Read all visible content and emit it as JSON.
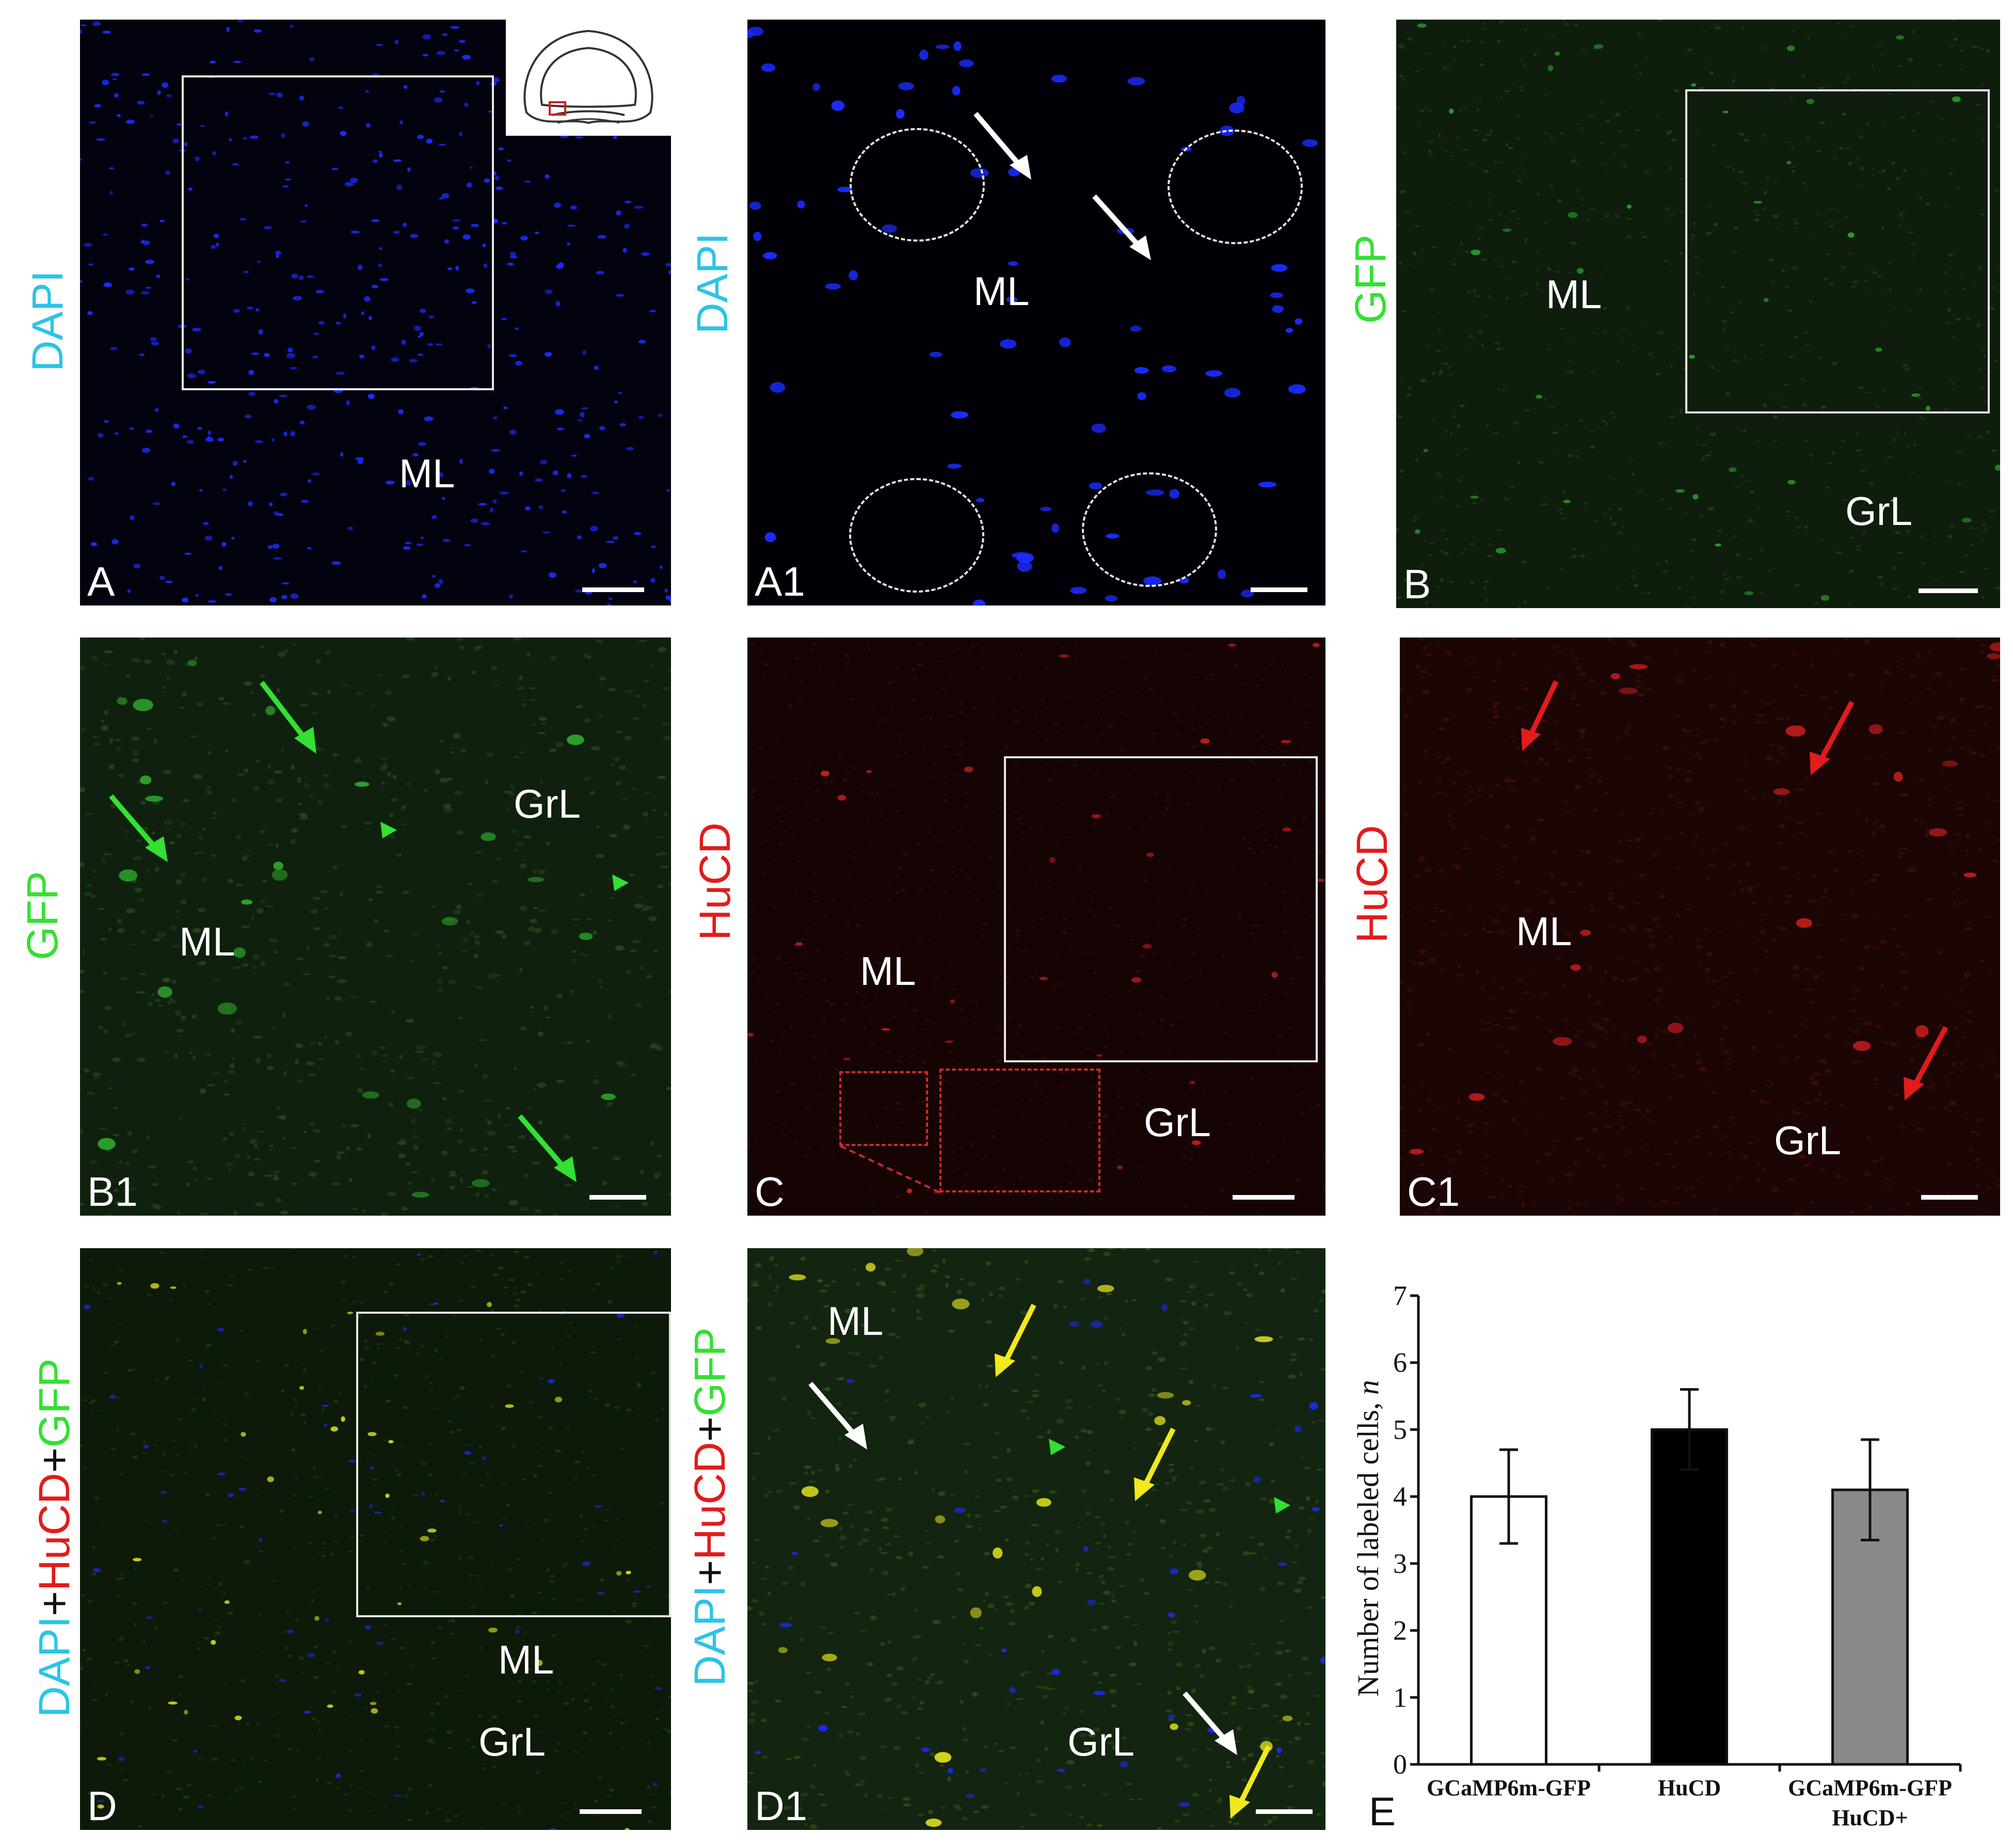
{
  "panels": {
    "A": {
      "letter": "A",
      "stain": "DAPI",
      "regions": [
        "ML"
      ]
    },
    "A1": {
      "letter": "A1",
      "stain": "DAPI",
      "regions": [
        "ML"
      ]
    },
    "B": {
      "letter": "B",
      "stain": "GFP",
      "regions": [
        "ML",
        "GrL"
      ]
    },
    "B1": {
      "letter": "B1",
      "stain": "GFP",
      "regions": [
        "ML",
        "GrL"
      ]
    },
    "C": {
      "letter": "C",
      "stain": "HuCD",
      "regions": [
        "ML",
        "GrL"
      ]
    },
    "C1": {
      "letter": "C1",
      "stain": "HuCD",
      "regions": [
        "ML",
        "GrL"
      ]
    },
    "D": {
      "letter": "D",
      "stain_parts": [
        "DAPI",
        "+",
        "HuCD",
        "+",
        "GFP"
      ],
      "regions": [
        "ML",
        "GrL"
      ]
    },
    "D1": {
      "letter": "D1",
      "stain_parts": [
        "DAPI",
        "+",
        "HuCD",
        "+",
        "GFP"
      ],
      "regions": [
        "ML",
        "GrL"
      ]
    },
    "E": {
      "letter": "E"
    }
  },
  "colors": {
    "dapi_label": "#2bc4e6",
    "gfp_label": "#33e033",
    "hucd_label": "#e21b1b",
    "nuclei": "#1a2cff",
    "gfp_signal": "#2fae2f",
    "hucd_signal": "#d11f1f",
    "merge_signal": "#e8e81e"
  },
  "chart_data": {
    "type": "bar",
    "categories": [
      "GCaMP6m-GFP",
      "HuCD",
      "GCaMP6m-GFP\nHuCD+"
    ],
    "category_lines": [
      [
        "GCaMP6m-GFP"
      ],
      [
        "HuCD"
      ],
      [
        "GCaMP6m-GFP",
        "HuCD+"
      ]
    ],
    "values": [
      4.0,
      5.0,
      4.1
    ],
    "errors": [
      0.7,
      0.6,
      0.75
    ],
    "bar_colors": [
      "#ffffff",
      "#000000",
      "#8a8a8a"
    ],
    "ylabel": "Number of labeled cells, n",
    "ylabel_main": "Number of labeled cells, ",
    "ylabel_italic": "n",
    "ylim": [
      0,
      7
    ],
    "yticks": [
      "0",
      "1",
      "2",
      "3",
      "4",
      "5",
      "6",
      "7"
    ],
    "grid": false
  }
}
